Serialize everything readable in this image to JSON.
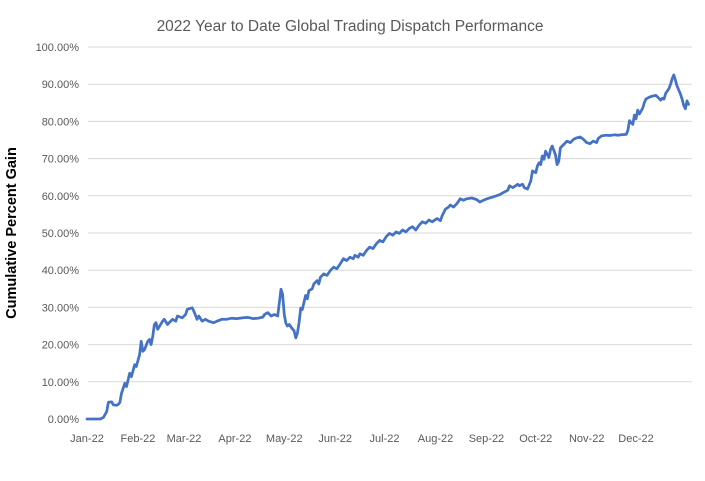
{
  "chart": {
    "title": "2022 Year to Date Global Trading Dispatch Performance",
    "y_axis_title": "Cumulative Percent Gain"
  },
  "chart_data": {
    "type": "line",
    "title": "2022 Year to Date Global Trading Dispatch Performance",
    "xlabel": "",
    "ylabel": "Cumulative Percent Gain",
    "ylim": [
      0,
      100
    ],
    "xlim_days": [
      0,
      368
    ],
    "grid": true,
    "legend": "none",
    "line_color": "#4472C4",
    "grid_color": "#D9D9D9",
    "text_color": "#595959",
    "axis_title_color": "#000000",
    "y_ticks": [
      {
        "value": 0,
        "label": "0.00%"
      },
      {
        "value": 10,
        "label": "10.00%"
      },
      {
        "value": 20,
        "label": "20.00%"
      },
      {
        "value": 30,
        "label": "30.00%"
      },
      {
        "value": 40,
        "label": "40.00%"
      },
      {
        "value": 50,
        "label": "50.00%"
      },
      {
        "value": 60,
        "label": "60.00%"
      },
      {
        "value": 70,
        "label": "70.00%"
      },
      {
        "value": 80,
        "label": "80.00%"
      },
      {
        "value": 90,
        "label": "90.00%"
      },
      {
        "value": 100,
        "label": "100.00%"
      }
    ],
    "x_ticks": [
      {
        "day": 0,
        "label": "Jan-22"
      },
      {
        "day": 31,
        "label": "Feb-22"
      },
      {
        "day": 59,
        "label": "Mar-22"
      },
      {
        "day": 90,
        "label": "Apr-22"
      },
      {
        "day": 120,
        "label": "May-22"
      },
      {
        "day": 151,
        "label": "Jun-22"
      },
      {
        "day": 181,
        "label": "Jul-22"
      },
      {
        "day": 212,
        "label": "Aug-22"
      },
      {
        "day": 243,
        "label": "Sep-22"
      },
      {
        "day": 273,
        "label": "Oct-22"
      },
      {
        "day": 304,
        "label": "Nov-22"
      },
      {
        "day": 334,
        "label": "Dec-22"
      }
    ],
    "series": [
      {
        "name": "Cumulative Percent Gain",
        "points": [
          [
            0,
            0.0
          ],
          [
            4,
            0.0
          ],
          [
            8,
            0.0
          ],
          [
            10,
            0.4
          ],
          [
            12,
            2.0
          ],
          [
            13,
            4.5
          ],
          [
            15,
            4.6
          ],
          [
            16,
            3.8
          ],
          [
            18,
            3.7
          ],
          [
            19,
            3.9
          ],
          [
            20,
            4.5
          ],
          [
            21,
            6.9
          ],
          [
            23,
            9.6
          ],
          [
            24,
            8.7
          ],
          [
            26,
            12.3
          ],
          [
            27,
            11.4
          ],
          [
            29,
            14.6
          ],
          [
            30,
            14.1
          ],
          [
            32,
            17.3
          ],
          [
            33,
            20.9
          ],
          [
            34,
            18.2
          ],
          [
            35,
            18.6
          ],
          [
            37,
            20.9
          ],
          [
            38,
            21.4
          ],
          [
            39,
            20.0
          ],
          [
            40,
            22.3
          ],
          [
            41,
            25.4
          ],
          [
            42,
            25.9
          ],
          [
            43,
            24.1
          ],
          [
            46,
            26.3
          ],
          [
            47,
            26.8
          ],
          [
            49,
            25.4
          ],
          [
            50,
            25.9
          ],
          [
            52,
            26.8
          ],
          [
            54,
            26.3
          ],
          [
            55,
            27.7
          ],
          [
            58,
            27.2
          ],
          [
            60,
            28.1
          ],
          [
            61,
            29.5
          ],
          [
            64,
            29.9
          ],
          [
            65,
            29.0
          ],
          [
            67,
            26.8
          ],
          [
            68,
            27.7
          ],
          [
            70,
            26.3
          ],
          [
            72,
            26.8
          ],
          [
            74,
            26.3
          ],
          [
            77,
            25.9
          ],
          [
            79,
            26.3
          ],
          [
            82,
            26.8
          ],
          [
            85,
            26.8
          ],
          [
            88,
            27.1
          ],
          [
            91,
            27.0
          ],
          [
            95,
            27.2
          ],
          [
            98,
            27.3
          ],
          [
            101,
            27.0
          ],
          [
            104,
            27.1
          ],
          [
            107,
            27.4
          ],
          [
            108,
            28.1
          ],
          [
            110,
            28.6
          ],
          [
            112,
            27.7
          ],
          [
            114,
            28.1
          ],
          [
            116,
            27.7
          ],
          [
            118,
            34.9
          ],
          [
            119,
            33.5
          ],
          [
            120,
            28.0
          ],
          [
            121,
            25.7
          ],
          [
            122,
            25.0
          ],
          [
            123,
            25.4
          ],
          [
            125,
            24.2
          ],
          [
            126,
            23.7
          ],
          [
            127,
            21.8
          ],
          [
            128,
            23.0
          ],
          [
            129,
            26.0
          ],
          [
            130,
            29.8
          ],
          [
            131,
            29.4
          ],
          [
            133,
            33.2
          ],
          [
            134,
            32.3
          ],
          [
            135,
            34.5
          ],
          [
            137,
            35.0
          ],
          [
            138,
            36.3
          ],
          [
            140,
            37.2
          ],
          [
            141,
            36.3
          ],
          [
            142,
            38.1
          ],
          [
            144,
            39.0
          ],
          [
            146,
            38.6
          ],
          [
            148,
            39.9
          ],
          [
            150,
            40.8
          ],
          [
            152,
            40.4
          ],
          [
            154,
            41.7
          ],
          [
            156,
            43.1
          ],
          [
            158,
            42.6
          ],
          [
            160,
            43.5
          ],
          [
            162,
            43.1
          ],
          [
            163,
            44.0
          ],
          [
            165,
            43.5
          ],
          [
            166,
            44.4
          ],
          [
            168,
            44.0
          ],
          [
            170,
            45.3
          ],
          [
            172,
            46.2
          ],
          [
            174,
            45.8
          ],
          [
            176,
            47.1
          ],
          [
            178,
            48.0
          ],
          [
            180,
            47.6
          ],
          [
            182,
            49.0
          ],
          [
            184,
            49.9
          ],
          [
            186,
            49.4
          ],
          [
            188,
            50.3
          ],
          [
            190,
            49.9
          ],
          [
            192,
            50.8
          ],
          [
            194,
            50.3
          ],
          [
            196,
            51.2
          ],
          [
            198,
            51.7
          ],
          [
            200,
            50.8
          ],
          [
            202,
            52.1
          ],
          [
            204,
            53.0
          ],
          [
            206,
            52.6
          ],
          [
            208,
            53.5
          ],
          [
            210,
            53.0
          ],
          [
            213,
            53.9
          ],
          [
            215,
            53.3
          ],
          [
            216,
            54.6
          ],
          [
            218,
            56.4
          ],
          [
            220,
            57.0
          ],
          [
            221,
            57.5
          ],
          [
            223,
            57.0
          ],
          [
            225,
            57.9
          ],
          [
            227,
            59.2
          ],
          [
            229,
            58.8
          ],
          [
            231,
            59.2
          ],
          [
            234,
            59.4
          ],
          [
            237,
            59.0
          ],
          [
            239,
            58.3
          ],
          [
            241,
            58.8
          ],
          [
            244,
            59.3
          ],
          [
            247,
            59.7
          ],
          [
            249,
            60.0
          ],
          [
            251,
            60.3
          ],
          [
            253,
            60.8
          ],
          [
            256,
            61.5
          ],
          [
            257,
            62.7
          ],
          [
            259,
            62.2
          ],
          [
            262,
            63.1
          ],
          [
            263,
            62.7
          ],
          [
            265,
            63.1
          ],
          [
            266,
            62.2
          ],
          [
            268,
            61.8
          ],
          [
            270,
            64.0
          ],
          [
            271,
            66.7
          ],
          [
            273,
            66.2
          ],
          [
            274,
            68.0
          ],
          [
            275,
            68.9
          ],
          [
            276,
            68.4
          ],
          [
            277,
            70.7
          ],
          [
            278,
            69.8
          ],
          [
            279,
            72.0
          ],
          [
            280,
            71.1
          ],
          [
            281,
            70.3
          ],
          [
            282,
            72.5
          ],
          [
            283,
            73.4
          ],
          [
            285,
            71.0
          ],
          [
            286,
            68.4
          ],
          [
            287,
            69.3
          ],
          [
            288,
            72.9
          ],
          [
            290,
            73.8
          ],
          [
            292,
            74.7
          ],
          [
            294,
            74.3
          ],
          [
            296,
            75.2
          ],
          [
            298,
            75.6
          ],
          [
            300,
            75.8
          ],
          [
            302,
            75.2
          ],
          [
            304,
            74.3
          ],
          [
            306,
            74.0
          ],
          [
            308,
            74.7
          ],
          [
            310,
            74.3
          ],
          [
            311,
            75.4
          ],
          [
            313,
            76.1
          ],
          [
            316,
            76.3
          ],
          [
            318,
            76.2
          ],
          [
            321,
            76.4
          ],
          [
            323,
            76.3
          ],
          [
            325,
            76.4
          ],
          [
            328,
            76.5
          ],
          [
            329,
            77.5
          ],
          [
            330,
            80.2
          ],
          [
            332,
            79.2
          ],
          [
            333,
            81.7
          ],
          [
            334,
            80.7
          ],
          [
            335,
            83.0
          ],
          [
            336,
            82.0
          ],
          [
            338,
            83.5
          ],
          [
            339,
            85.0
          ],
          [
            340,
            86.0
          ],
          [
            342,
            86.5
          ],
          [
            344,
            86.8
          ],
          [
            346,
            87.0
          ],
          [
            347,
            86.6
          ],
          [
            349,
            85.7
          ],
          [
            350,
            86.2
          ],
          [
            351,
            86.0
          ],
          [
            352,
            87.5
          ],
          [
            354,
            88.8
          ],
          [
            355,
            90.0
          ],
          [
            356,
            91.5
          ],
          [
            357,
            92.5
          ],
          [
            358,
            91.0
          ],
          [
            359,
            89.5
          ],
          [
            361,
            87.4
          ],
          [
            362,
            86.0
          ],
          [
            363,
            84.3
          ],
          [
            364,
            83.4
          ],
          [
            365,
            85.5
          ],
          [
            366,
            84.6
          ]
        ]
      }
    ]
  }
}
